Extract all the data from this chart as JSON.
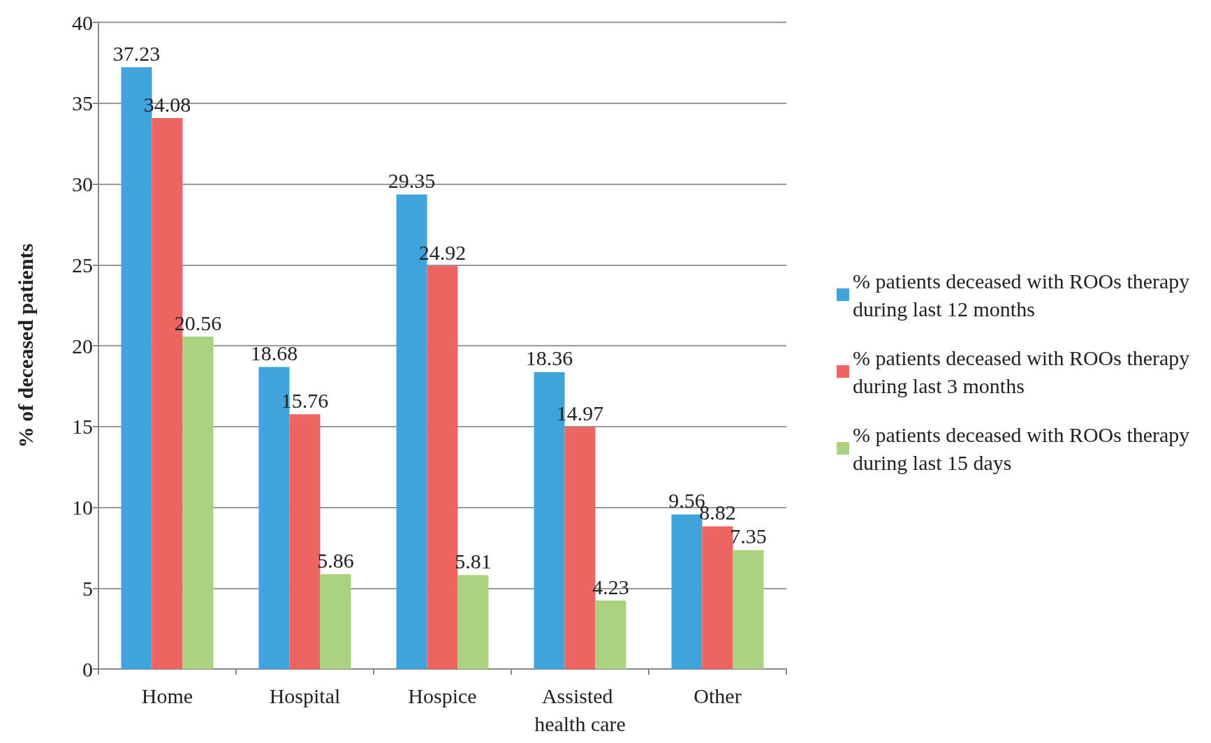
{
  "chart_data": {
    "type": "bar",
    "ylabel": "% of deceased patients",
    "categories": [
      "Home",
      "Hospital",
      "Hospice",
      "Assisted health care",
      "Other"
    ],
    "series": [
      {
        "name": "% patients deceased with ROOs therapy during last 12 months",
        "color": "#3fa3dc",
        "values": [
          37.23,
          18.68,
          29.35,
          18.36,
          9.56
        ]
      },
      {
        "name": "% patients deceased with ROOs therapy during last 3 months",
        "color": "#ee6460",
        "values": [
          34.08,
          15.76,
          24.92,
          14.97,
          8.82
        ]
      },
      {
        "name": "% patients deceased with ROOs therapy during last 15 days",
        "color": "#abd27e",
        "values": [
          20.56,
          5.86,
          5.81,
          4.23,
          7.35
        ]
      }
    ],
    "ylim": [
      0,
      40
    ],
    "yticks": [
      0,
      5,
      10,
      15,
      20,
      25,
      30,
      35,
      40
    ],
    "grid": "y",
    "legend": "right",
    "data_labels": true
  }
}
